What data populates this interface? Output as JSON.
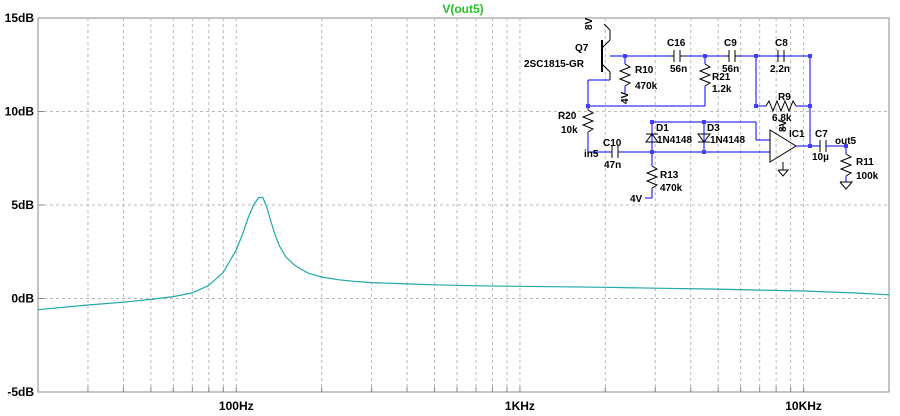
{
  "chart_data": {
    "type": "line",
    "title": "V(out5)",
    "x_scale": "log",
    "xlim": [
      20,
      20000
    ],
    "ylim": [
      -5,
      15
    ],
    "x_ticks": [
      {
        "value": 100,
        "label": "100Hz"
      },
      {
        "value": 1000,
        "label": "1KHz"
      },
      {
        "value": 10000,
        "label": "10KHz"
      }
    ],
    "y_ticks": [
      {
        "value": 15,
        "label": "15dB"
      },
      {
        "value": 10,
        "label": "10dB"
      },
      {
        "value": 5,
        "label": "5dB"
      },
      {
        "value": 0,
        "label": "0dB"
      },
      {
        "value": -5,
        "label": "-5dB"
      }
    ],
    "grid": true,
    "series": [
      {
        "name": "V(out5)",
        "color": "#1fa8a8",
        "x": [
          20,
          30,
          40,
          50,
          60,
          70,
          80,
          90,
          100,
          105,
          110,
          115,
          120,
          124,
          128,
          132,
          137,
          142,
          150,
          160,
          170,
          180,
          200,
          230,
          260,
          300,
          400,
          500,
          700,
          1000,
          2000,
          3000,
          5000,
          7000,
          10000,
          15000,
          20000
        ],
        "y": [
          -0.6,
          -0.35,
          -0.2,
          -0.05,
          0.1,
          0.3,
          0.7,
          1.4,
          2.6,
          3.4,
          4.3,
          5.0,
          5.4,
          5.4,
          4.9,
          4.2,
          3.4,
          2.8,
          2.2,
          1.8,
          1.55,
          1.35,
          1.15,
          1.0,
          0.92,
          0.85,
          0.78,
          0.73,
          0.68,
          0.65,
          0.6,
          0.55,
          0.5,
          0.45,
          0.4,
          0.3,
          0.2
        ]
      }
    ]
  },
  "schematic": {
    "labels": {
      "q7": "Q7",
      "q7_model": "2SC1815-GR",
      "v8_top": "8V",
      "c16": "C16",
      "c16_val": "56n",
      "c9": "C9",
      "c9_val": "56n",
      "c8": "C8",
      "c8_val": "2.2n",
      "r10": "R10",
      "r10_val": "470k",
      "r21": "R21",
      "r21_val": "1.2k",
      "v4_r10": "4V",
      "r9": "R9",
      "r9_val": "6.8k",
      "r20": "R20",
      "r20_val": "10k",
      "d1": "D1",
      "d1_model": "1N4148",
      "d3": "D3",
      "d3_model": "1N4148",
      "v8_ic": "8V",
      "ic1": "IC1",
      "c10": "C10",
      "c10_val": "47n",
      "in5": "in5",
      "c7": "C7",
      "c7_val": "10µ",
      "out5": "out5",
      "r11": "R11",
      "r11_val": "100k",
      "r13": "R13",
      "r13_val": "470k",
      "v4_r13": "4V"
    }
  }
}
